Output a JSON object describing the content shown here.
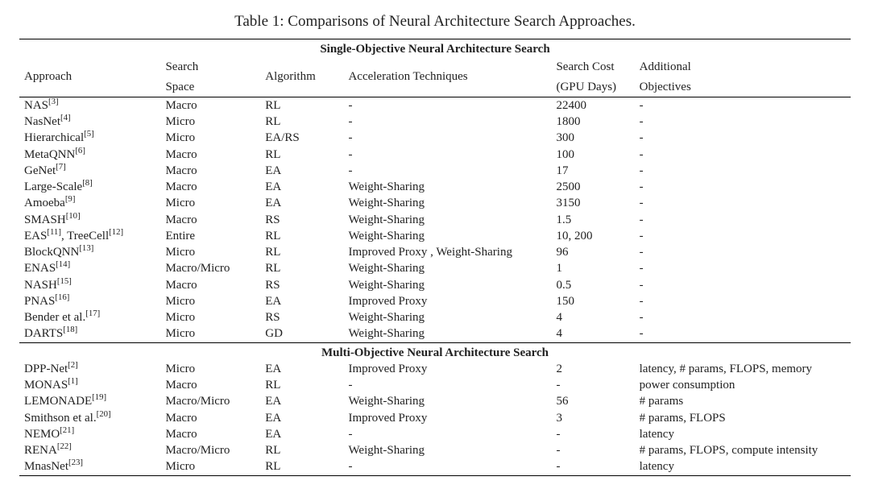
{
  "caption": "Table 1: Comparisons of Neural Architecture Search Approaches.",
  "section1": "Single-Objective Neural Architecture Search",
  "section2": "Multi-Objective Neural Architecture Search",
  "head": {
    "approach": "Approach",
    "space1": "Search",
    "space2": "Space",
    "algo": "Algorithm",
    "accel": "Acceleration Techniques",
    "cost1": "Search Cost",
    "cost2": "(GPU Days)",
    "add1": "Additional",
    "add2": "Objectives"
  },
  "s1rows": [
    {
      "name": "NAS",
      "ref": "[3]",
      "space": "Macro",
      "algo": "RL",
      "accel": "-",
      "cost": "22400",
      "add": "-"
    },
    {
      "name": "NasNet",
      "ref": "[4]",
      "space": "Micro",
      "algo": "RL",
      "accel": "-",
      "cost": "1800",
      "add": "-"
    },
    {
      "name": "Hierarchical",
      "ref": "[5]",
      "space": "Micro",
      "algo": "EA/RS",
      "accel": "-",
      "cost": "300",
      "add": "-"
    },
    {
      "name": "MetaQNN",
      "ref": "[6]",
      "space": "Macro",
      "algo": "RL",
      "accel": "-",
      "cost": "100",
      "add": "-"
    },
    {
      "name": "GeNet",
      "ref": "[7]",
      "space": "Macro",
      "algo": "EA",
      "accel": "-",
      "cost": "17",
      "add": "-"
    },
    {
      "name": "Large-Scale",
      "ref": "[8]",
      "space": "Macro",
      "algo": "EA",
      "accel": "Weight-Sharing",
      "cost": "2500",
      "add": "-"
    },
    {
      "name": "Amoeba",
      "ref": "[9]",
      "space": "Micro",
      "algo": "EA",
      "accel": "Weight-Sharing",
      "cost": "3150",
      "add": "-"
    },
    {
      "name": "SMASH",
      "ref": "[10]",
      "space": "Macro",
      "algo": "RS",
      "accel": "Weight-Sharing",
      "cost": "1.5",
      "add": "-"
    },
    {
      "name": "EAS",
      "ref": "[11]",
      "name2": ", TreeCell",
      "ref2": "[12]",
      "space": "Entire",
      "algo": "RL",
      "accel": "Weight-Sharing",
      "cost": "10, 200",
      "add": "-"
    },
    {
      "name": "BlockQNN",
      "ref": "[13]",
      "space": "Micro",
      "algo": "RL",
      "accel": "Improved Proxy , Weight-Sharing",
      "cost": "96",
      "add": "-"
    },
    {
      "name": "ENAS",
      "ref": "[14]",
      "space": "Macro/Micro",
      "algo": "RL",
      "accel": "Weight-Sharing",
      "cost": "1",
      "add": "-"
    },
    {
      "name": "NASH",
      "ref": "[15]",
      "space": "Macro",
      "algo": "RS",
      "accel": "Weight-Sharing",
      "cost": "0.5",
      "add": "-"
    },
    {
      "name": "PNAS",
      "ref": "[16]",
      "space": "Micro",
      "algo": "EA",
      "accel": "Improved Proxy",
      "cost": "150",
      "add": "-"
    },
    {
      "name": "Bender et al.",
      "ref": "[17]",
      "space": "Micro",
      "algo": "RS",
      "accel": "Weight-Sharing",
      "cost": "4",
      "add": "-"
    },
    {
      "name": "DARTS",
      "ref": "[18]",
      "space": "Micro",
      "algo": "GD",
      "accel": "Weight-Sharing",
      "cost": "4",
      "add": "-"
    }
  ],
  "s2rows": [
    {
      "name": "DPP-Net",
      "ref": "[2]",
      "space": "Micro",
      "algo": "EA",
      "accel": "Improved Proxy",
      "cost": "2",
      "add": "latency, # params, FLOPS, memory"
    },
    {
      "name": "MONAS",
      "ref": "[1]",
      "space": "Macro",
      "algo": "RL",
      "accel": "-",
      "cost": "-",
      "add": "power consumption"
    },
    {
      "name": "LEMONADE",
      "ref": "[19]",
      "space": "Macro/Micro",
      "algo": "EA",
      "accel": "Weight-Sharing",
      "cost": "56",
      "add": "# params"
    },
    {
      "name": "Smithson et al.",
      "ref": "[20]",
      "space": "Macro",
      "algo": "EA",
      "accel": "Improved Proxy",
      "cost": "3",
      "add": "# params, FLOPS"
    },
    {
      "name": "NEMO",
      "ref": "[21]",
      "space": "Macro",
      "algo": "EA",
      "accel": "-",
      "cost": "-",
      "add": "latency"
    },
    {
      "name": "RENA",
      "ref": "[22]",
      "space": "Macro/Micro",
      "algo": "RL",
      "accel": "Weight-Sharing",
      "cost": "-",
      "add": "# params, FLOPS, compute intensity"
    },
    {
      "name": "MnasNet",
      "ref": "[23]",
      "space": "Micro",
      "algo": "RL",
      "accel": "-",
      "cost": "-",
      "add": "latency"
    }
  ]
}
